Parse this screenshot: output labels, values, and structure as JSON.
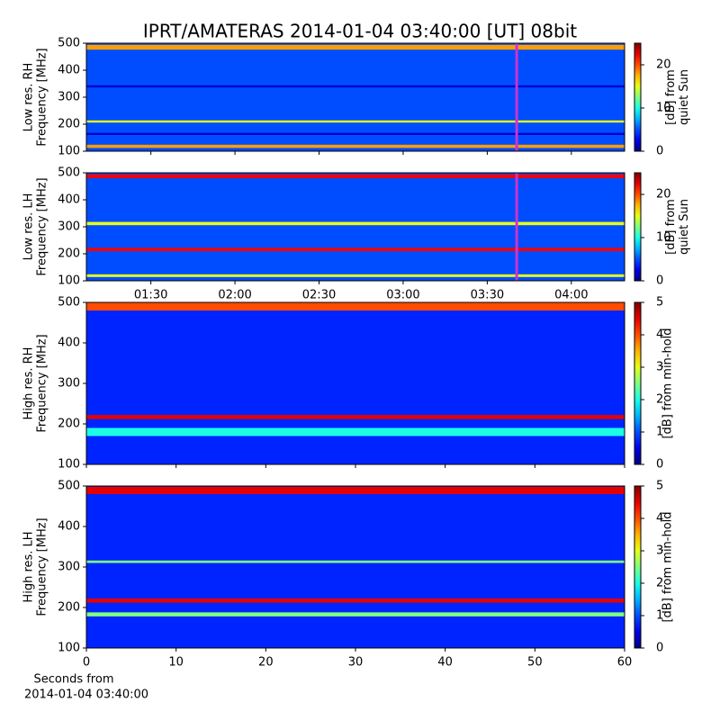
{
  "title": "IPRT/AMATERAS 2014-01-04 03:40:00 [UT]   08bit",
  "chart_data": [
    {
      "type": "heatmap",
      "ylabel": [
        "Low res. RH",
        "Frequency [MHz]"
      ],
      "xlim": [
        67,
        259
      ],
      "ylim": [
        100,
        500
      ],
      "yticks": [
        100,
        200,
        300,
        400,
        500
      ],
      "background": 5,
      "bands": [
        {
          "from": 112,
          "to": 124,
          "level": 18
        },
        {
          "from": 160,
          "to": 168,
          "level": 2
        },
        {
          "from": 206,
          "to": 214,
          "level": 15
        },
        {
          "from": 336,
          "to": 344,
          "level": 2
        },
        {
          "from": 476,
          "to": 494,
          "level": 18
        }
      ],
      "marker": 220.5,
      "marker_color": "#cc33cc",
      "colorbar": {
        "label": [
          "[dB] from",
          "quiet Sun"
        ],
        "lim": [
          0,
          25
        ],
        "ticks": [
          0,
          10,
          20
        ]
      }
    },
    {
      "type": "heatmap",
      "ylabel": [
        "Low res. LH",
        "Frequency [MHz]"
      ],
      "xlim": [
        67,
        259
      ],
      "ylim": [
        100,
        500
      ],
      "yticks": [
        100,
        200,
        300,
        400,
        500
      ],
      "xticks": [
        {
          "value": 90,
          "label": "01:30"
        },
        {
          "value": 120,
          "label": "02:00"
        },
        {
          "value": 150,
          "label": "02:30"
        },
        {
          "value": 180,
          "label": "03:00"
        },
        {
          "value": 210,
          "label": "03:30"
        },
        {
          "value": 240,
          "label": "04:00"
        }
      ],
      "background": 5,
      "bands": [
        {
          "from": 114,
          "to": 124,
          "level": 15
        },
        {
          "from": 210,
          "to": 222,
          "level": 22
        },
        {
          "from": 306,
          "to": 318,
          "level": 15
        },
        {
          "from": 480,
          "to": 494,
          "level": 22
        }
      ],
      "marker": 220.5,
      "marker_color": "#cc33cc",
      "colorbar": {
        "label": [
          "[dB] from",
          "quiet Sun"
        ],
        "lim": [
          0,
          25
        ],
        "ticks": [
          0,
          10,
          20
        ]
      }
    },
    {
      "type": "heatmap",
      "ylabel": [
        "High res. RH",
        "Frequency [MHz]"
      ],
      "xlim": [
        0,
        60
      ],
      "ylim": [
        100,
        500
      ],
      "yticks": [
        100,
        200,
        300,
        400,
        500
      ],
      "background": 0.8,
      "bands": [
        {
          "from": 170,
          "to": 190,
          "level": 2
        },
        {
          "from": 212,
          "to": 222,
          "level": 4.5
        },
        {
          "from": 480,
          "to": 500,
          "level": 4
        }
      ],
      "colorbar": {
        "label": [
          "[dB] from min-hold"
        ],
        "lim": [
          0,
          5
        ],
        "ticks": [
          0,
          1,
          2,
          3,
          4,
          5
        ]
      }
    },
    {
      "type": "heatmap",
      "ylabel": [
        "High res. LH",
        "Frequency [MHz]"
      ],
      "xlim": [
        0,
        60
      ],
      "ylim": [
        100,
        500
      ],
      "yticks": [
        100,
        200,
        300,
        400,
        500
      ],
      "xticks": [
        0,
        10,
        20,
        30,
        40,
        50,
        60
      ],
      "xlabel": [
        "Seconds from",
        "2014-01-04 03:40:00"
      ],
      "background": 0.8,
      "bands": [
        {
          "from": 178,
          "to": 188,
          "level": 2.5
        },
        {
          "from": 212,
          "to": 222,
          "level": 4.5
        },
        {
          "from": 310,
          "to": 316,
          "level": 2.5
        },
        {
          "from": 480,
          "to": 498,
          "level": 4.5
        }
      ],
      "colorbar": {
        "label": [
          "[dB] from min-hold"
        ],
        "lim": [
          0,
          5
        ],
        "ticks": [
          0,
          1,
          2,
          3,
          4,
          5
        ]
      }
    }
  ]
}
